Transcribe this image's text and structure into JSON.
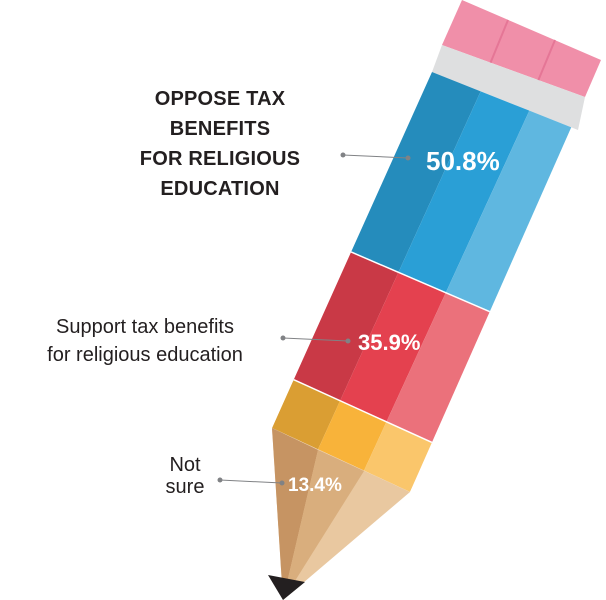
{
  "chart_data": {
    "type": "bar",
    "style": "stacked pencil infographic",
    "categories": [
      "OPPOSE TAX BENEFITS FOR RELIGIOUS EDUCATION",
      "Support tax benefits for religious education",
      "Not sure"
    ],
    "values": [
      50.8,
      35.9,
      13.4
    ],
    "value_labels": [
      "50.8%",
      "35.9%",
      "13.4%"
    ],
    "segment_colors": [
      "#2a9fd6",
      "#e4414f",
      "#f8b33a"
    ],
    "label_lines": [
      [
        "OPPOSE TAX",
        "BENEFITS",
        "FOR RELIGIOUS",
        "EDUCATION"
      ],
      [
        "Support tax benefits",
        "for religious education"
      ],
      [
        "Not",
        "sure"
      ]
    ]
  }
}
